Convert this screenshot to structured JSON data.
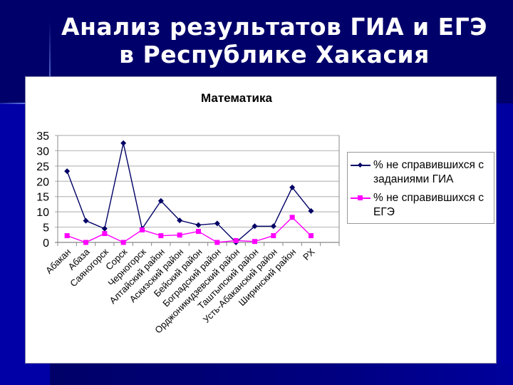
{
  "slide": {
    "title_line1": "Анализ результатов ГИА и ЕГЭ",
    "title_line2": "в Республике Хакасия"
  },
  "colors": {
    "background_dark": "#00006a",
    "background_bright": "#0000a6",
    "series_gia": "#000066",
    "series_ege": "#ff00ff"
  },
  "chart_data": {
    "type": "line",
    "title": "Математика",
    "xlabel": "",
    "ylabel": "",
    "ylim": [
      0,
      35
    ],
    "yticks": [
      0,
      5,
      10,
      15,
      20,
      25,
      30,
      35
    ],
    "grid": true,
    "legend_position": "right",
    "categories": [
      "Абакан",
      "Абаза",
      "Саяногорск",
      "Сорск",
      "Черногорск",
      "Алтайский район",
      "Аскизский район",
      "Бейский район",
      "Боградский район",
      "Орджоникидзевский район",
      "Таштыпский район",
      "Усть-Абаканский район",
      "Ширинский район",
      "РХ"
    ],
    "series": [
      {
        "name": "% не справившихся с заданиями ГИА",
        "marker": "diamond",
        "color": "#000066",
        "values": [
          23.3,
          7.1,
          4.5,
          32.5,
          4.5,
          13.6,
          7.2,
          5.7,
          6.2,
          0.0,
          5.3,
          5.3,
          18.0,
          10.3
        ]
      },
      {
        "name": "% не справившихся с ЕГЭ",
        "marker": "square",
        "color": "#ff00ff",
        "values": [
          2.2,
          0.0,
          2.9,
          0.0,
          4.1,
          2.2,
          2.4,
          3.6,
          0.0,
          0.6,
          0.3,
          2.2,
          8.2,
          2.2
        ]
      }
    ]
  },
  "legend": {
    "item1_line1": "% не справившихся с",
    "item1_line2": "заданиями ГИА",
    "item2_line1": "% не справившихся с",
    "item2_line2": "ЕГЭ"
  }
}
